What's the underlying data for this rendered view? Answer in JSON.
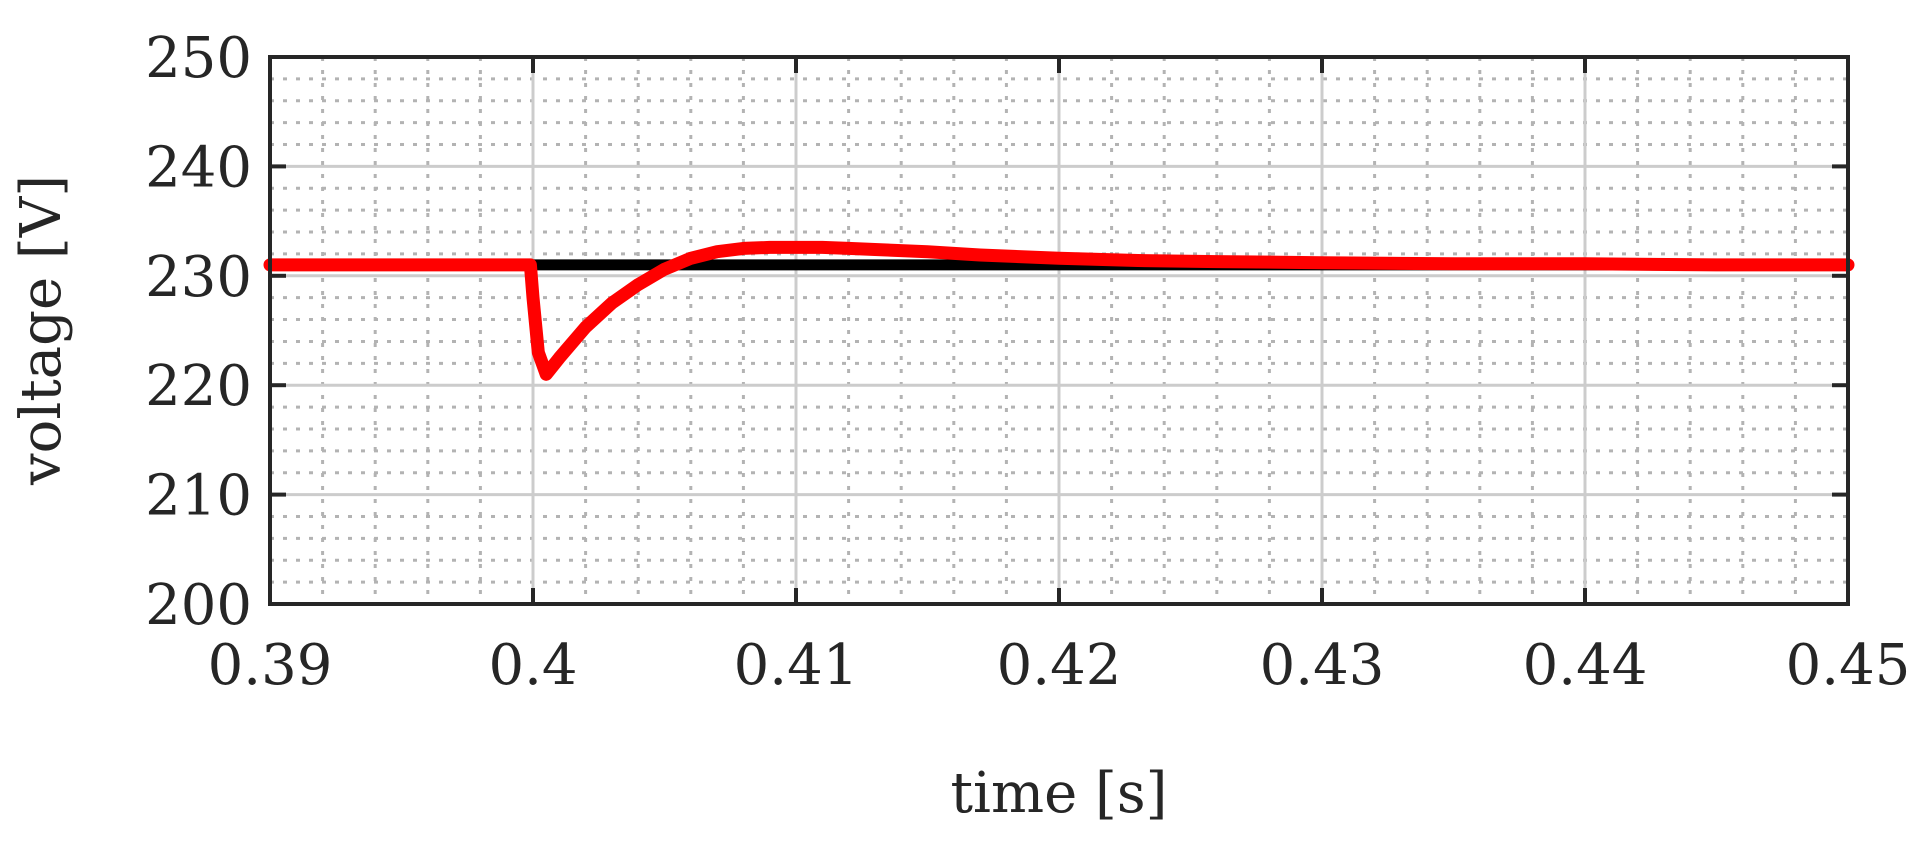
{
  "chart_data": {
    "type": "line",
    "title": "",
    "xlabel": "time [s]",
    "ylabel": "voltage [V]",
    "xlim": [
      0.39,
      0.45
    ],
    "ylim": [
      200,
      250
    ],
    "xticks": [
      0.39,
      0.4,
      0.41,
      0.42,
      0.43,
      0.44,
      0.45
    ],
    "xtick_labels": [
      "0.39",
      "0.4",
      "0.41",
      "0.42",
      "0.43",
      "0.44",
      "0.45"
    ],
    "yticks": [
      200,
      210,
      220,
      230,
      240,
      250
    ],
    "ytick_labels": [
      "200",
      "210",
      "220",
      "230",
      "240",
      "250"
    ],
    "grid": true,
    "minor_grid": true,
    "legend": "none",
    "series": [
      {
        "color": "#000000",
        "x": [
          0.39,
          0.4,
          0.405,
          0.41,
          0.42,
          0.43,
          0.44,
          0.45
        ],
        "y": [
          231,
          231,
          231,
          231,
          231,
          231,
          231,
          231
        ]
      },
      {
        "color": "#ff0000",
        "x": [
          0.39,
          0.3999,
          0.4,
          0.4002,
          0.4005,
          0.401,
          0.402,
          0.403,
          0.404,
          0.405,
          0.406,
          0.407,
          0.408,
          0.409,
          0.41,
          0.411,
          0.412,
          0.413,
          0.415,
          0.417,
          0.42,
          0.423,
          0.426,
          0.43,
          0.435,
          0.44,
          0.445,
          0.45
        ],
        "y": [
          231,
          231,
          228,
          223,
          221,
          222.5,
          225.3,
          227.5,
          229.2,
          230.6,
          231.6,
          232.2,
          232.5,
          232.6,
          232.6,
          232.6,
          232.5,
          232.4,
          232.2,
          231.9,
          231.6,
          231.4,
          231.3,
          231.2,
          231.1,
          231.1,
          231.0,
          231.0
        ]
      }
    ]
  }
}
